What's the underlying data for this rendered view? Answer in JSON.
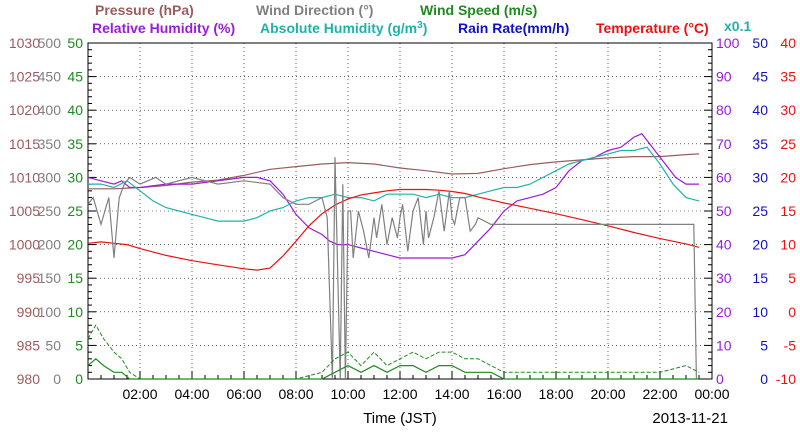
{
  "chart_data": {
    "type": "line",
    "date": "2013-11-21",
    "xlabel": "Time (JST)",
    "x_ticks": [
      "02:00",
      "04:00",
      "06:00",
      "08:00",
      "10:00",
      "12:00",
      "14:00",
      "16:00",
      "18:00",
      "20:00",
      "22:00",
      "00:00"
    ],
    "legend": {
      "row1": [
        {
          "label": "Pressure (hPa)",
          "color": "#9a5d5d"
        },
        {
          "label": "Wind Direction (°)",
          "color": "#808080"
        },
        {
          "label": "Wind Speed (m/s)",
          "color": "#1f8a1f"
        }
      ],
      "row2": [
        {
          "label": "Relative Humidity (%)",
          "color": "#9b1bdb"
        },
        {
          "label": "Absolute Humidity (g/m",
          "sup": "3",
          "close": ")",
          "color": "#20b2aa"
        },
        {
          "label": "Rain Rate(mm/h)",
          "color": "#1010c8"
        },
        {
          "label": "Temperature (°C)",
          "color": "#ee1010"
        }
      ],
      "scale_note": "x0.1"
    },
    "axes": {
      "pressure": {
        "range": [
          980,
          1030
        ],
        "ticks": [
          "1030",
          "1025",
          "1020",
          "1015",
          "1010",
          "1005",
          "1000",
          "995",
          "990",
          "985",
          "980"
        ],
        "color": "#9a5d5d"
      },
      "wind_direction": {
        "range": [
          0,
          500
        ],
        "ticks": [
          "500",
          "450",
          "400",
          "350",
          "300",
          "250",
          "200",
          "150",
          "100",
          "50",
          "0"
        ],
        "color": "#808080"
      },
      "wind_speed": {
        "range": [
          0,
          50
        ],
        "ticks": [
          "50",
          "45",
          "40",
          "35",
          "30",
          "25",
          "20",
          "15",
          "10",
          "5",
          "0"
        ],
        "color": "#1f8a1f"
      },
      "relative_humidity": {
        "range": [
          0,
          100
        ],
        "ticks": [
          "100",
          "90",
          "80",
          "70",
          "60",
          "50",
          "40",
          "30",
          "20",
          "10",
          "0"
        ],
        "color": "#9b1bdb"
      },
      "rain_rate": {
        "range": [
          0,
          50
        ],
        "ticks": [
          "50",
          "45",
          "40",
          "35",
          "30",
          "25",
          "20",
          "15",
          "10",
          "5",
          "0"
        ],
        "color": "#1010c8"
      },
      "temperature": {
        "range": [
          -10,
          40
        ],
        "ticks": [
          "40",
          "35",
          "30",
          "25",
          "20",
          "15",
          "10",
          "5",
          "0",
          "-5",
          "-10"
        ],
        "color": "#ee1010"
      }
    },
    "grid": true,
    "xlim_hours": [
      0,
      24
    ],
    "series": [
      {
        "name": "Pressure (hPa)",
        "axis": "pressure",
        "color": "#9a5d5d",
        "x": [
          0,
          1,
          2,
          3,
          4,
          5,
          6,
          7,
          8,
          9,
          10,
          11,
          12,
          13,
          14,
          15,
          16,
          17,
          18,
          19,
          20,
          21,
          22,
          23,
          23.5
        ],
        "y": [
          1008.3,
          1008.3,
          1008.5,
          1008.8,
          1009.3,
          1009.6,
          1010.3,
          1011.2,
          1011.6,
          1012.0,
          1012.2,
          1012.0,
          1011.4,
          1011.0,
          1010.5,
          1010.6,
          1011.3,
          1011.9,
          1012.3,
          1012.6,
          1012.9,
          1013.1,
          1013.1,
          1013.4,
          1013.5
        ]
      },
      {
        "name": "Relative Humidity (%)",
        "axis": "relative_humidity",
        "color": "#9b1bdb",
        "x": [
          0,
          0.5,
          1,
          1.3,
          1.6,
          2,
          3,
          4,
          5,
          6,
          6.5,
          7,
          7.5,
          8,
          8.5,
          9,
          9.3,
          9.6,
          10,
          10.5,
          11,
          11.5,
          12,
          12.5,
          13,
          13.5,
          14,
          14.5,
          15,
          15.5,
          16,
          16.5,
          17,
          17.5,
          18,
          18.5,
          19,
          19.5,
          20,
          20.5,
          21,
          21.3,
          21.5,
          22,
          22.3,
          22.6,
          23,
          23.3,
          23.5
        ],
        "y": [
          60,
          59,
          58,
          59,
          57,
          57,
          58,
          58,
          59,
          60,
          60,
          59,
          55,
          49,
          45,
          43,
          41,
          40,
          40,
          39,
          38,
          37,
          36,
          36,
          36,
          36,
          36,
          37,
          41,
          45,
          50,
          53,
          54,
          55,
          57,
          62,
          65,
          66,
          68,
          69,
          72,
          73,
          71,
          66,
          63,
          60,
          58,
          58,
          58
        ]
      },
      {
        "name": "Absolute Humidity (g/m3)",
        "axis": "relative_humidity",
        "color": "#20b2aa",
        "x": [
          0,
          0.5,
          1,
          1.5,
          2,
          2.5,
          3,
          3.5,
          4,
          4.5,
          5,
          5.5,
          6,
          6.5,
          7,
          7.5,
          8,
          8.5,
          9,
          9.5,
          10,
          10.5,
          11,
          11.5,
          12,
          12.5,
          13,
          13.5,
          14,
          14.5,
          15,
          15.5,
          16,
          16.5,
          17,
          17.5,
          18,
          18.5,
          19,
          19.5,
          20,
          20.5,
          21,
          21.5,
          22,
          22.5,
          23,
          23.5
        ],
        "y": [
          58,
          58,
          57,
          59,
          56,
          53,
          51,
          50,
          49,
          48,
          47,
          47,
          47,
          48,
          50,
          51,
          53,
          54,
          54,
          55,
          54,
          54,
          53,
          55,
          55,
          55,
          54,
          55,
          54,
          54,
          55,
          56,
          57,
          57,
          58,
          60,
          62,
          64,
          65,
          66,
          67,
          68,
          68,
          69,
          64,
          58,
          54,
          53
        ]
      },
      {
        "name": "Temperature (°C)",
        "axis": "temperature",
        "color": "#ee1010",
        "x": [
          0,
          0.5,
          1,
          1.5,
          2,
          3,
          4,
          5,
          6,
          6.5,
          7,
          7.5,
          8,
          8.5,
          9,
          9.5,
          10,
          10.5,
          11,
          11.5,
          12,
          12.5,
          13,
          13.5,
          14,
          14.5,
          15,
          16,
          17,
          18,
          19,
          20,
          21,
          22,
          23,
          23.5
        ],
        "y": [
          10.2,
          10.4,
          10.2,
          10.0,
          9.4,
          8.4,
          7.6,
          7.0,
          6.4,
          6.2,
          6.5,
          8.3,
          10.5,
          12.8,
          14.6,
          15.9,
          16.8,
          17.4,
          17.7,
          18.0,
          18.2,
          18.2,
          18.2,
          18.1,
          17.9,
          17.6,
          17.1,
          16.2,
          15.4,
          14.6,
          13.7,
          12.8,
          11.8,
          10.9,
          10.1,
          9.6
        ]
      },
      {
        "name": "Wind Direction (°)",
        "axis": "wind_direction",
        "color": "#808080",
        "x": [
          0,
          0.2,
          0.5,
          0.8,
          1.0,
          1.2,
          1.4,
          1.6,
          2,
          2.3,
          2.6,
          3,
          4,
          5,
          6,
          7,
          7.5,
          8,
          8.5,
          9,
          9.2,
          9.4,
          9.5,
          9.7,
          9.8,
          9.9,
          10.0,
          10.1,
          10.2,
          10.4,
          10.6,
          10.8,
          11,
          11.1,
          11.3,
          11.5,
          11.7,
          11.9,
          12.0,
          12.1,
          12.3,
          12.5,
          12.7,
          12.9,
          13.0,
          13.1,
          13.3,
          13.5,
          13.7,
          13.9,
          14.0,
          14.1,
          14.3,
          14.5,
          14.7,
          14.9,
          15,
          15.5,
          16,
          17,
          18,
          19,
          20,
          21,
          22,
          23,
          23.3,
          23.4
        ],
        "y": [
          260,
          270,
          230,
          270,
          180,
          270,
          290,
          300,
          290,
          295,
          300,
          290,
          300,
          290,
          295,
          290,
          270,
          260,
          260,
          270,
          240,
          0,
          330,
          0,
          290,
          0,
          250,
          250,
          180,
          250,
          220,
          180,
          240,
          210,
          260,
          200,
          240,
          210,
          240,
          260,
          190,
          250,
          270,
          200,
          250,
          210,
          240,
          280,
          220,
          280,
          240,
          230,
          270,
          270,
          220,
          230,
          240,
          230,
          230,
          230,
          230,
          230,
          230,
          230,
          230,
          230,
          230,
          0
        ]
      },
      {
        "name": "Wind Speed (m/s)",
        "axis": "wind_speed",
        "color": "#1f8a1f",
        "dashed_gust": true,
        "x": [
          0,
          0.3,
          0.6,
          1,
          1.3,
          1.6,
          2,
          3,
          4,
          5,
          6,
          7,
          8,
          9,
          9.5,
          10,
          10.5,
          11,
          11.5,
          12,
          12.5,
          13,
          13.5,
          14,
          14.5,
          15,
          15.5,
          16,
          17,
          18,
          19,
          20,
          21,
          22,
          23,
          23.5
        ],
        "y": [
          2,
          3,
          2,
          1,
          1,
          0,
          0,
          0,
          0,
          0,
          0,
          0,
          0,
          0,
          1,
          2,
          1,
          2,
          1,
          2,
          2,
          1,
          2,
          2,
          1,
          1,
          1,
          0,
          0,
          0,
          0,
          0,
          0,
          0,
          0,
          0
        ],
        "gust": [
          6,
          8,
          6,
          4,
          3,
          1,
          0,
          0,
          0,
          0,
          0,
          0,
          0,
          1,
          3,
          4,
          2,
          4,
          2,
          3,
          4,
          3,
          4,
          4,
          3,
          3,
          2,
          1,
          1,
          1,
          1,
          1,
          1,
          1,
          2,
          1
        ]
      }
    ]
  }
}
